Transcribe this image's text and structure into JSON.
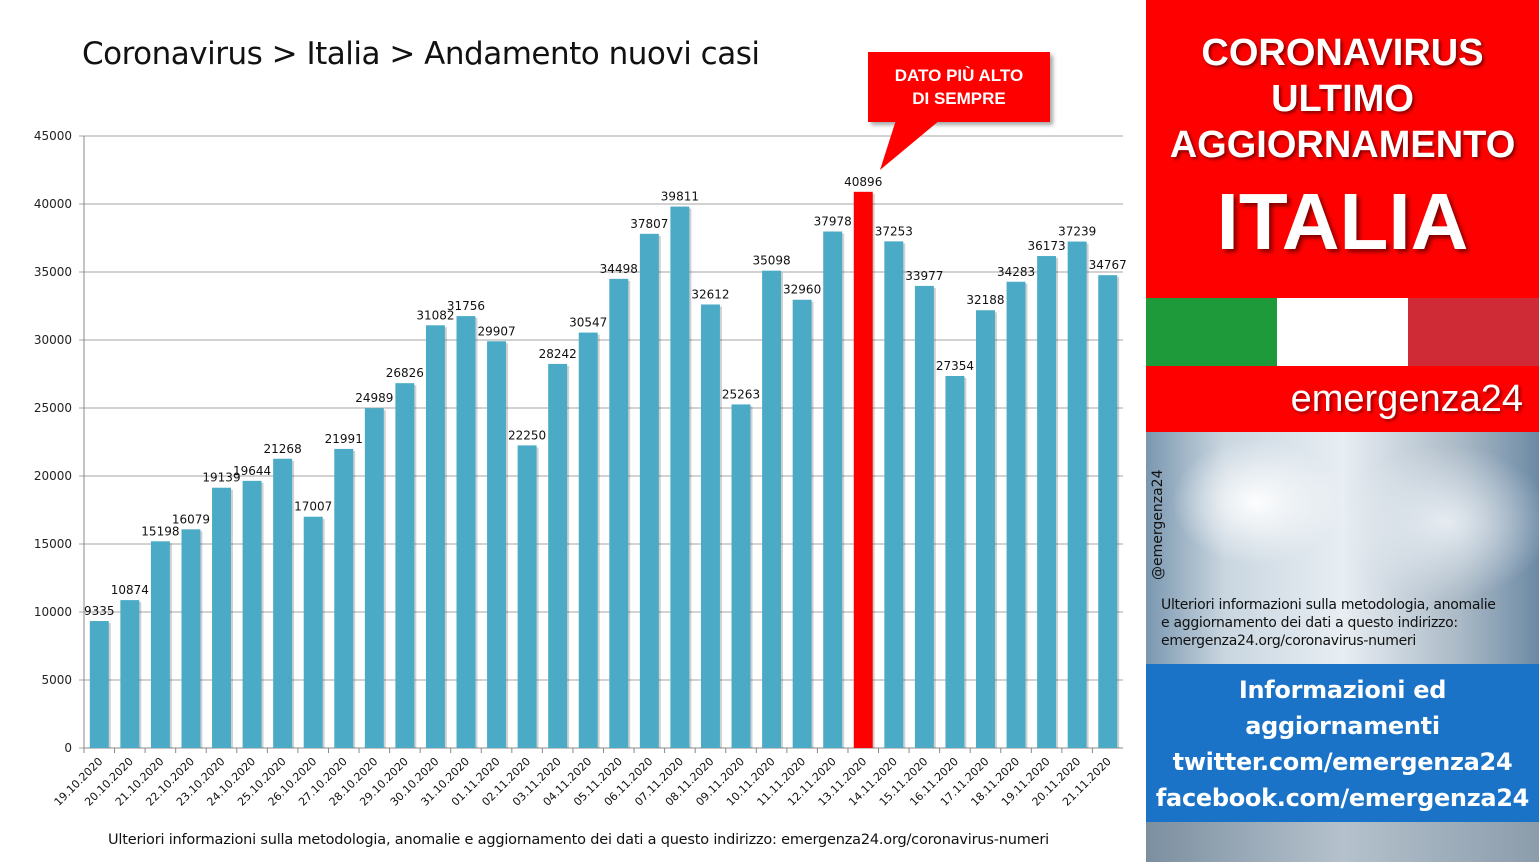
{
  "chart_data": {
    "type": "bar",
    "title": "Coronavirus > Italia > Andamento nuovi casi",
    "categories": [
      "19.10.2020",
      "20.10.2020",
      "21.10.2020",
      "22.10.2020",
      "23.10.2020",
      "24.10.2020",
      "25.10.2020",
      "26.10.2020",
      "27.10.2020",
      "28.10.2020",
      "29.10.2020",
      "30.10.2020",
      "31.10.2020",
      "01.11.2020",
      "02.11.2020",
      "03.11.2020",
      "04.11.2020",
      "05.11.2020",
      "06.11.2020",
      "07.11.2020",
      "08.11.2020",
      "09.11.2020",
      "10.11.2020",
      "11.11.2020",
      "12.11.2020",
      "13.11.2020",
      "14.11.2020",
      "15.11.2020",
      "16.11.2020",
      "17.11.2020",
      "18.11.2020",
      "19.11.2020",
      "20.11.2020",
      "21.11.2020"
    ],
    "values": [
      9335,
      10874,
      15198,
      16079,
      19139,
      19644,
      21268,
      17007,
      21991,
      24989,
      26826,
      31082,
      31756,
      29907,
      22250,
      28242,
      30547,
      34498,
      37807,
      39811,
      32612,
      25263,
      35098,
      32960,
      37978,
      40896,
      37253,
      33977,
      27354,
      32188,
      34283,
      36173,
      37239,
      34767
    ],
    "highlight_index": 25,
    "ylim": [
      0,
      45000
    ],
    "yticks": [
      0,
      5000,
      10000,
      15000,
      20000,
      25000,
      30000,
      35000,
      40000,
      45000
    ],
    "xlabel": "",
    "ylabel": "",
    "grid": true,
    "colors": {
      "bar": "#4babc6",
      "highlight": "#ff0000"
    },
    "annotation": {
      "line1": "DATO PIÙ ALTO",
      "line2": "DI SEMPRE"
    }
  },
  "bottom_note": "Ulteriori informazioni sulla metodologia, anomalie e aggiornamento dei dati a questo indirizzo: emergenza24.org/coronavirus-numeri",
  "panel": {
    "line1": "CORONAVIRUS",
    "line2": "ULTIMO",
    "line3": "AGGIORNAMENTO",
    "country": "ITALIA",
    "brand": "emergenza24",
    "handle": "@emergenza24",
    "note_lines": [
      "Ulteriori informazioni sulla metodologia, anomalie",
      "e aggiornamento dei dati a questo indirizzo:",
      "emergenza24.org/coronavirus-numeri"
    ],
    "info_lines": [
      "Informazioni ed",
      "aggiornamenti",
      "twitter.com/emergenza24",
      "facebook.com/emergenza24"
    ],
    "flag_colors": [
      "#1e9a3a",
      "#ffffff",
      "#ce2b37"
    ]
  }
}
